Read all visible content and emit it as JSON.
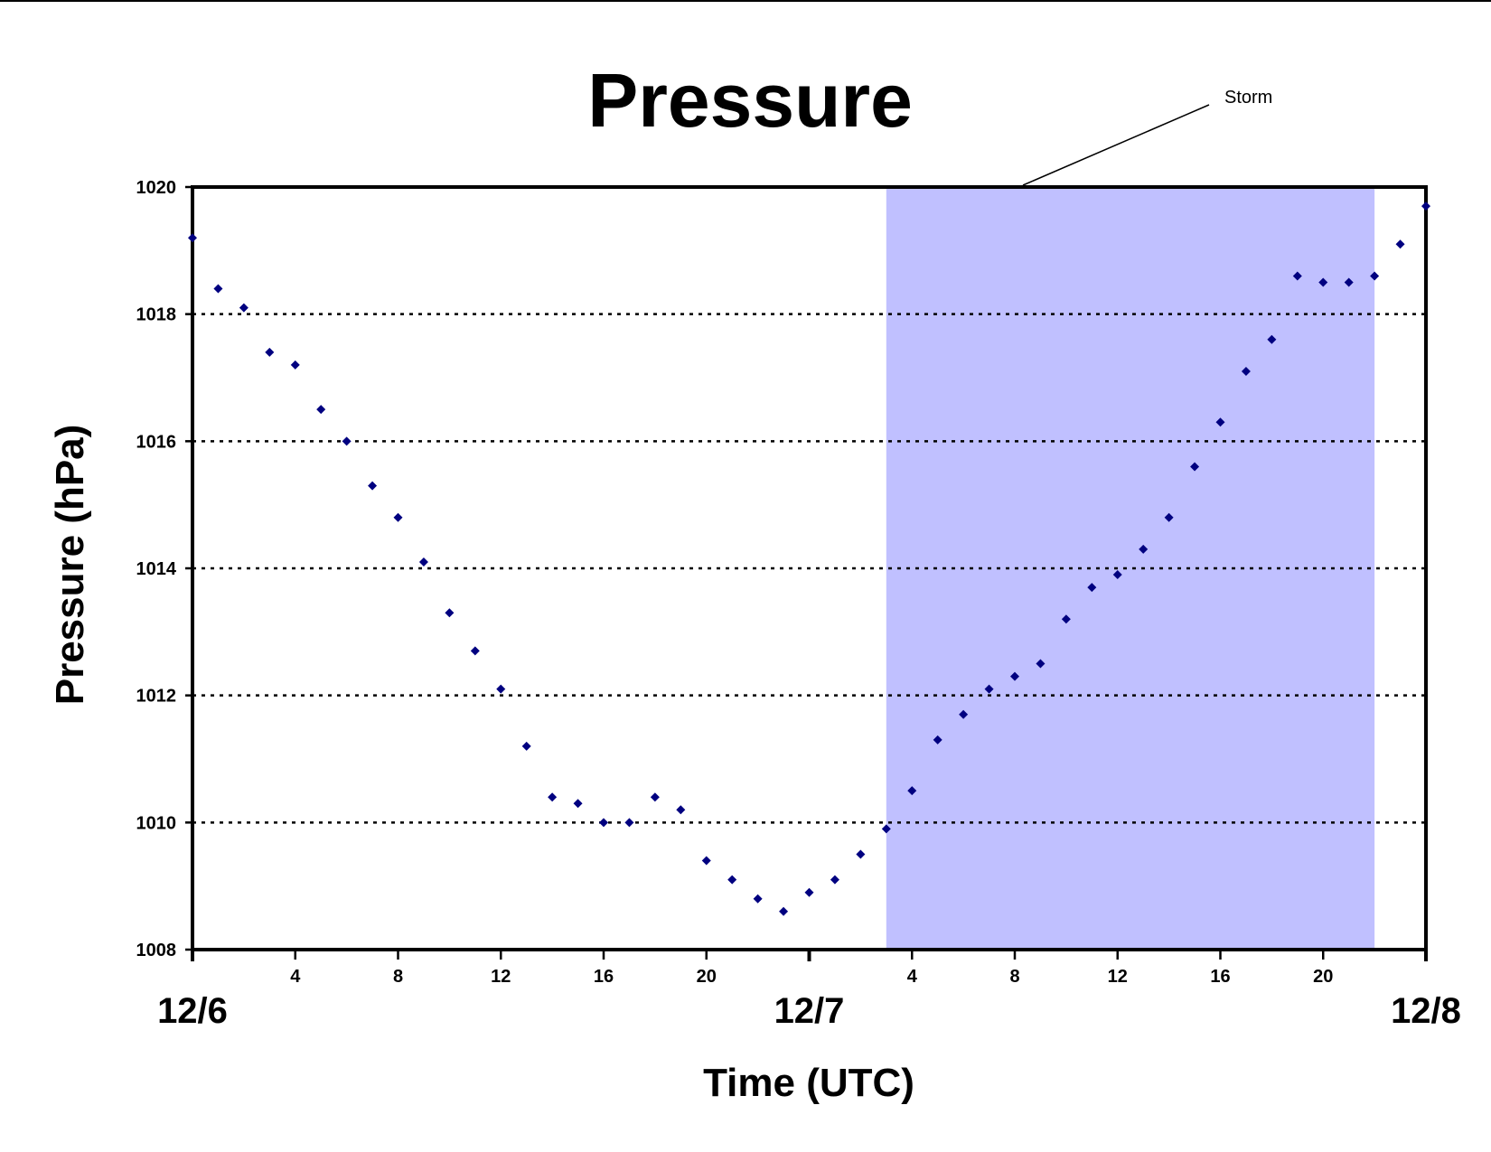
{
  "chart_data": {
    "type": "scatter",
    "title": "Pressure",
    "xlabel": "Time (UTC)",
    "ylabel": "Pressure (hPa)",
    "ylim": [
      1008,
      1020
    ],
    "yticks": [
      "1008",
      "1010",
      "1012",
      "1014",
      "1016",
      "1018",
      "1020"
    ],
    "xlim_hours": [
      0,
      48
    ],
    "xticks": [
      {
        "hour": 4,
        "label": "4"
      },
      {
        "hour": 8,
        "label": "8"
      },
      {
        "hour": 12,
        "label": "12"
      },
      {
        "hour": 16,
        "label": "16"
      },
      {
        "hour": 20,
        "label": "20"
      },
      {
        "hour": 28,
        "label": "4"
      },
      {
        "hour": 32,
        "label": "8"
      },
      {
        "hour": 36,
        "label": "12"
      },
      {
        "hour": 40,
        "label": "16"
      },
      {
        "hour": 44,
        "label": "20"
      }
    ],
    "date_labels": [
      {
        "hour": 0,
        "label": "12/6"
      },
      {
        "hour": 24,
        "label": "12/7"
      },
      {
        "hour": 48,
        "label": "12/8"
      }
    ],
    "grid": "horizontal dotted",
    "marker_color": "#000080",
    "annotation": {
      "label": "Storm",
      "start_hour": 27,
      "end_hour": 46,
      "color": "#c0c0ff"
    },
    "series": [
      {
        "x": [
          0,
          1,
          2,
          3,
          4,
          5,
          6,
          7,
          8,
          9,
          10,
          11,
          12,
          13,
          14,
          15,
          16,
          17,
          18,
          19,
          20,
          21,
          22,
          23,
          24,
          25,
          26,
          27,
          28,
          29,
          30,
          31,
          32,
          33,
          34,
          35,
          36,
          37,
          38,
          39,
          40,
          41,
          42,
          43,
          44,
          45,
          46,
          47,
          48
        ],
        "y": [
          1019.2,
          1018.4,
          1018.1,
          1017.4,
          1017.2,
          1016.5,
          1016.0,
          1015.3,
          1014.8,
          1014.1,
          1013.3,
          1012.7,
          1012.1,
          1011.2,
          1010.4,
          1010.3,
          1010.0,
          1010.0,
          1010.4,
          1010.2,
          1009.4,
          1009.1,
          1008.8,
          1008.6,
          1008.9,
          1009.1,
          1009.5,
          1009.9,
          1010.5,
          1011.3,
          1011.7,
          1012.1,
          1012.3,
          1012.5,
          1013.2,
          1013.7,
          1013.9,
          1014.3,
          1014.8,
          1015.6,
          1016.3,
          1017.1,
          1017.6,
          1018.6,
          1018.5,
          1018.5,
          1018.6,
          1019.1,
          1019.7
        ]
      }
    ]
  }
}
